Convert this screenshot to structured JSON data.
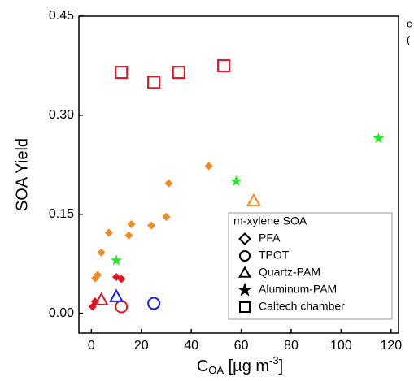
{
  "chart_data": {
    "type": "scatter",
    "ylabel": "SOA Yield",
    "xlabel": [
      "C",
      "OA",
      " [µg m",
      "-3",
      "]"
    ],
    "xlim": [
      -5,
      123
    ],
    "ylim": [
      -0.03,
      0.45
    ],
    "xticks": [
      0,
      20,
      40,
      60,
      80,
      100,
      120
    ],
    "yticks": [
      {
        "value": 0,
        "label": "0.00"
      },
      0.15,
      {
        "value": 0.3,
        "label": "0.30"
      },
      0.45
    ],
    "grid": false,
    "legend_title": "m-xylene SOA",
    "legend": "lower right",
    "side_text": [
      "c",
      "("
    ],
    "series": [
      {
        "name": "PFA",
        "marker": "diamond",
        "x": [
          1.5,
          2.5,
          4,
          7,
          15,
          16,
          24,
          30,
          31,
          47,
          0.5,
          1.5,
          10,
          12
        ],
        "values": [
          0.053,
          0.058,
          0.092,
          0.122,
          0.118,
          0.135,
          0.133,
          0.146,
          0.197,
          0.223,
          0.01,
          0.018,
          0.055,
          0.052
        ],
        "colors": [
          "#f5891f",
          "#f5891f",
          "#f5891f",
          "#f5891f",
          "#f5891f",
          "#f5891f",
          "#f5891f",
          "#f5891f",
          "#f5891f",
          "#f5891f",
          "#e8101a",
          "#e8101a",
          "#e8101a",
          "#e8101a"
        ]
      },
      {
        "name": "TPOT",
        "marker": "circle",
        "x": [
          12,
          25
        ],
        "values": [
          0.01,
          0.015
        ],
        "colors": [
          "#e8101a",
          "#1a1ae8"
        ]
      },
      {
        "name": "Quartz-PAM",
        "marker": "triangle",
        "x": [
          4,
          10,
          65
        ],
        "values": [
          0.02,
          0.025,
          0.17
        ],
        "colors": [
          "#e8101a",
          "#1a1ae8",
          "#f5891f"
        ]
      },
      {
        "name": "Aluminum-PAM",
        "marker": "star",
        "x": [
          10,
          58,
          115
        ],
        "values": [
          0.08,
          0.2,
          0.265
        ],
        "colors": [
          "#22e822",
          "#22e822",
          "#22e822"
        ]
      },
      {
        "name": "Caltech chamber",
        "marker": "square",
        "x": [
          12,
          25,
          35,
          53
        ],
        "values": [
          0.365,
          0.35,
          0.365,
          0.375
        ],
        "colors": [
          "#e8101a",
          "#e8101a",
          "#e8101a",
          "#e8101a"
        ]
      }
    ]
  }
}
